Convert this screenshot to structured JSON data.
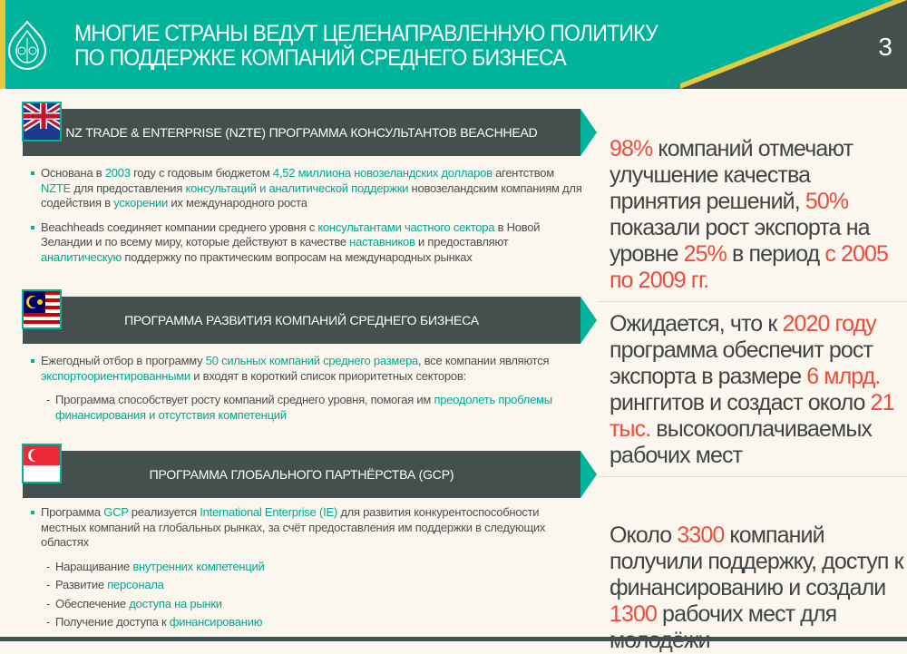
{
  "header": {
    "title_line1": "МНОГИЕ СТРАНЫ ВЕДУТ ЦЕЛЕНАПРАВЛЕННУЮ ПОЛИТИКУ",
    "title_line2": "ПО ПОДДЕРЖКЕ КОМПАНИЙ СРЕДНЕГО БИЗНЕСА",
    "page_number": "3"
  },
  "colors": {
    "teal": "#00b49b",
    "dark": "#44504e",
    "yellow": "#e8c93d",
    "accent_red": "#ef4a3a",
    "background": "#fbf6ee"
  },
  "sections": [
    {
      "flag": "new-zealand-flag-icon",
      "title": "NZ TRADE & ENTERPRISE (NZTE) ПРОГРАММА КОНСУЛЬТАНТОВ BEACHHEAD",
      "bullets": [
        {
          "sub": false,
          "segs": [
            {
              "t": "Основана в "
            },
            {
              "t": "2003",
              "h": true
            },
            {
              "t": " году с годовым бюджетом "
            },
            {
              "t": "4,52 миллиона новозеландских долларов",
              "h": true
            },
            {
              "t": " агентством "
            },
            {
              "t": "NZTE",
              "h": true
            },
            {
              "t": " для предоставления "
            },
            {
              "t": "консультаций и аналитической поддержки",
              "h": true
            },
            {
              "t": " новозеландским компаниям для содействия в "
            },
            {
              "t": "ускорении",
              "h": true
            },
            {
              "t": " их международного роста"
            }
          ]
        },
        {
          "sub": false,
          "segs": [
            {
              "t": "Beachheads соединяет компании среднего уровня с "
            },
            {
              "t": "консультантами частного сектора",
              "h": true
            },
            {
              "t": " в Новой Зеландии и по всему миру, которые действуют в качестве "
            },
            {
              "t": "наставников",
              "h": true
            },
            {
              "t": " и предоставляют "
            },
            {
              "t": "аналитическую",
              "h": true
            },
            {
              "t": " поддержку по практическим вопросам на международных рынках"
            }
          ]
        }
      ],
      "highlight": [
        {
          "t": "98%",
          "h": true
        },
        {
          "t": " компаний отмечают улучшение качества принятия решений, "
        },
        {
          "t": "50%",
          "h": true
        },
        {
          "t": " показали рост экспорта на уровне "
        },
        {
          "t": "25%",
          "h": true
        },
        {
          "t": " в период "
        },
        {
          "t": "с 2005 по 2009 гг.",
          "h": true
        }
      ]
    },
    {
      "flag": "malaysia-flag-icon",
      "title": "ПРОГРАММА РАЗВИТИЯ КОМПАНИЙ СРЕДНЕГО БИЗНЕСА",
      "bullets": [
        {
          "sub": false,
          "segs": [
            {
              "t": "Ежегодный отбор в программу "
            },
            {
              "t": "50 сильных компаний среднего размера",
              "h": true
            },
            {
              "t": ", все компании являются "
            },
            {
              "t": "экспортоориентированными",
              "h": true
            },
            {
              "t": " и входят в короткий список приоритетных секторов:"
            }
          ]
        },
        {
          "sub": true,
          "segs": [
            {
              "t": "Программа способствует росту компаний среднего уровня, помогая им "
            },
            {
              "t": "преодолеть проблемы финансирования и отсутствия компетенций",
              "h": true
            }
          ]
        }
      ],
      "highlight": [
        {
          "t": "Ожидается, что к "
        },
        {
          "t": "2020 году",
          "h": true
        },
        {
          "t": " программа обеспечит рост экспорта в размере "
        },
        {
          "t": "6 млрд.",
          "h": true
        },
        {
          "t": " ринггитов и создаст около "
        },
        {
          "t": "21 тыс.",
          "h": true
        },
        {
          "t": " высокооплачиваемых рабочих мест"
        }
      ]
    },
    {
      "flag": "singapore-flag-icon",
      "title": "ПРОГРАММА ГЛОБАЛЬНОГО ПАРТНЁРСТВА (GCP)",
      "bullets": [
        {
          "sub": false,
          "segs": [
            {
              "t": "Программа "
            },
            {
              "t": "GCP",
              "h": true
            },
            {
              "t": " реализуется "
            },
            {
              "t": "International Enterprise (IE)",
              "h": true
            },
            {
              "t": " для развития конкурентоспособности местных компаний на глобальных рынках, за счёт предоставления им поддержки в следующих областях"
            }
          ]
        },
        {
          "sub": true,
          "segs": [
            {
              "t": "Наращивание "
            },
            {
              "t": "внутренних компетенций",
              "h": true
            }
          ]
        },
        {
          "sub": true,
          "segs": [
            {
              "t": "Развитие "
            },
            {
              "t": "персонала",
              "h": true
            }
          ]
        },
        {
          "sub": true,
          "segs": [
            {
              "t": "Обеспечение "
            },
            {
              "t": "доступа на рынки",
              "h": true
            }
          ]
        },
        {
          "sub": true,
          "segs": [
            {
              "t": "Получение доступа к "
            },
            {
              "t": "финансированию",
              "h": true
            }
          ]
        }
      ],
      "highlight": [
        {
          "t": "Около "
        },
        {
          "t": "3300",
          "h": true
        },
        {
          "t": " компаний получили поддержку, доступ к финансированию и создали "
        },
        {
          "t": "1300",
          "h": true
        },
        {
          "t": " рабочих мест для молодёжи"
        }
      ]
    }
  ]
}
